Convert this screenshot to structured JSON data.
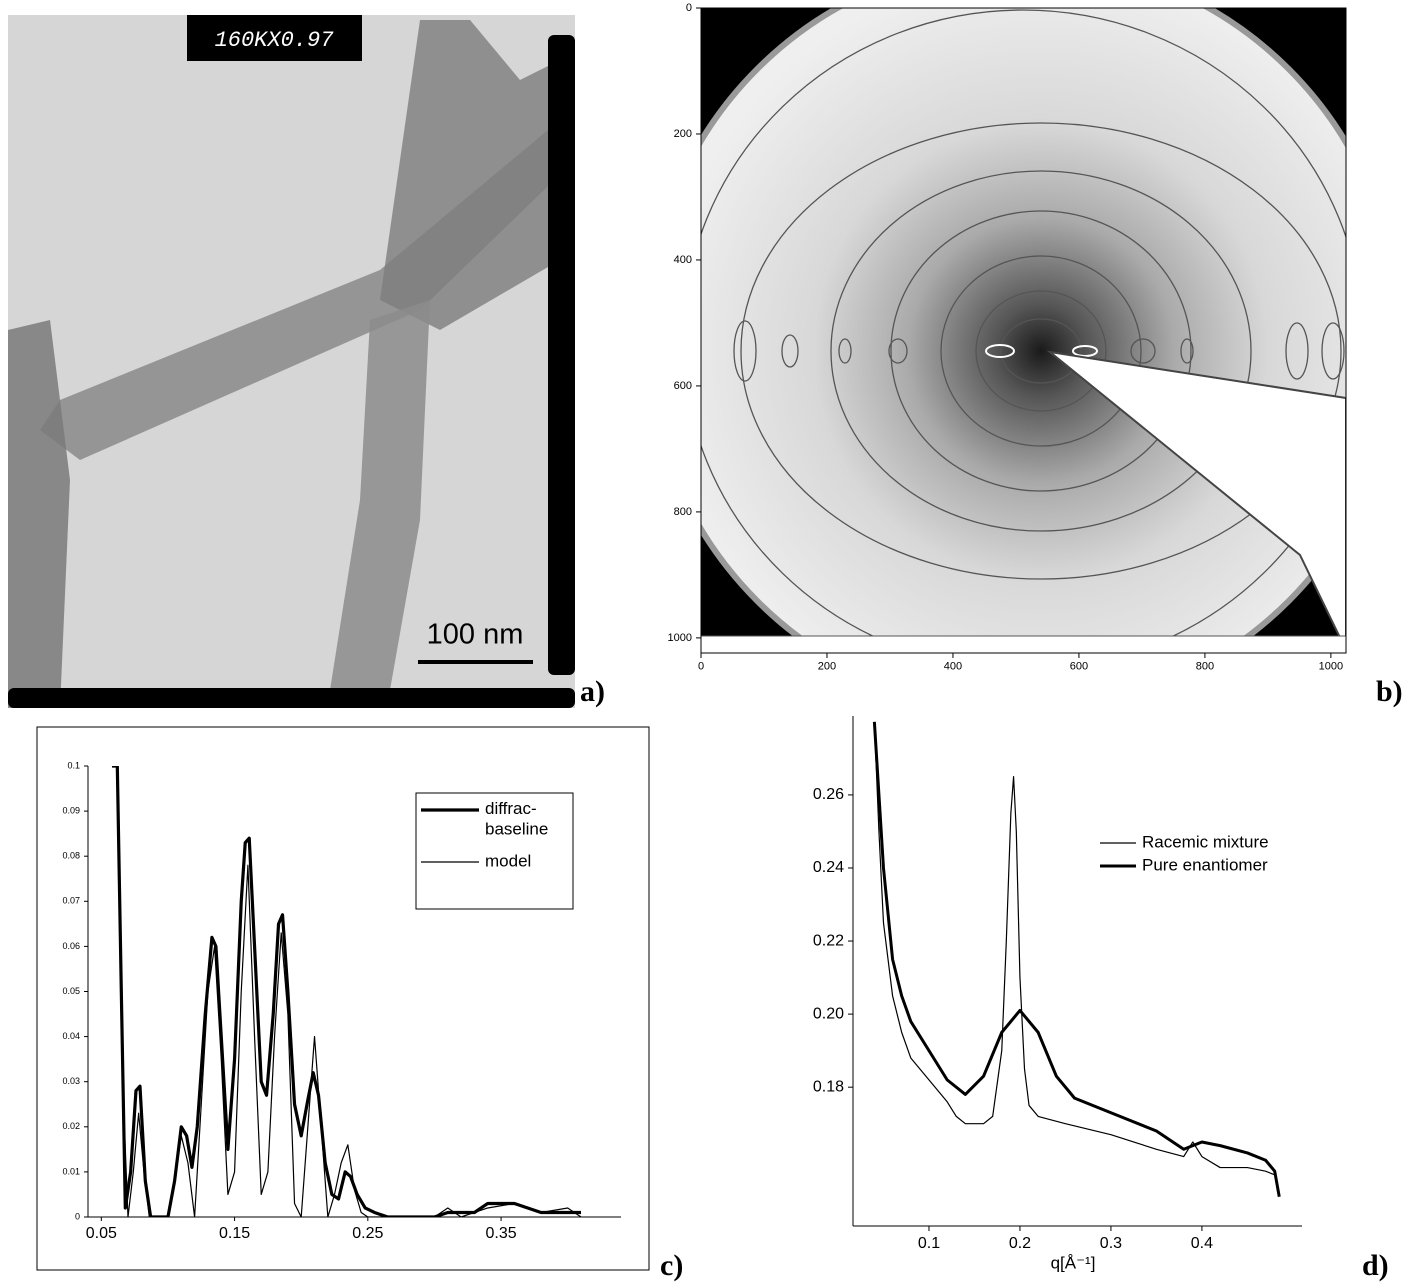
{
  "chart_data": [
    {
      "type": "image",
      "label": "a)",
      "header_text": "160KX0.97",
      "scale_bar_label": "100 nm"
    },
    {
      "type": "heatmap",
      "label": "b)",
      "colormap": "gray",
      "xlim": [
        0,
        1024
      ],
      "ylim": [
        1024,
        0
      ],
      "xticks": [
        0,
        200,
        400,
        600,
        800,
        1000
      ],
      "yticks": [
        0,
        200,
        400,
        600,
        800,
        1000
      ]
    },
    {
      "type": "line",
      "label": "c)",
      "legend": "upper right",
      "xlim": [
        0.04,
        0.44
      ],
      "ylim": [
        0,
        0.1
      ],
      "xticks": [
        0.05,
        0.15,
        0.25,
        0.35
      ],
      "yticks": [
        0,
        0.01,
        0.02,
        0.03,
        0.04,
        0.05,
        0.06,
        0.07,
        0.08,
        0.09,
        0.1
      ],
      "series": [
        {
          "name": "diffrac-\nbaseline",
          "color": "#000000",
          "line_width": 3.2,
          "x": [
            0.058,
            0.062,
            0.065,
            0.068,
            0.072,
            0.076,
            0.079,
            0.083,
            0.087,
            0.1,
            0.105,
            0.11,
            0.114,
            0.118,
            0.122,
            0.128,
            0.133,
            0.136,
            0.14,
            0.145,
            0.15,
            0.155,
            0.158,
            0.161,
            0.165,
            0.17,
            0.174,
            0.179,
            0.183,
            0.186,
            0.19,
            0.195,
            0.2,
            0.205,
            0.209,
            0.213,
            0.218,
            0.223,
            0.228,
            0.233,
            0.237,
            0.242,
            0.248,
            0.255,
            0.265,
            0.28,
            0.3,
            0.31,
            0.32,
            0.33,
            0.34,
            0.35,
            0.36,
            0.37,
            0.38,
            0.39,
            0.4,
            0.41
          ],
          "values": [
            0.1,
            0.1,
            0.05,
            0.002,
            0.01,
            0.028,
            0.029,
            0.008,
            0,
            0,
            0.008,
            0.02,
            0.018,
            0.011,
            0.02,
            0.045,
            0.062,
            0.06,
            0.04,
            0.015,
            0.035,
            0.07,
            0.083,
            0.084,
            0.06,
            0.03,
            0.027,
            0.045,
            0.065,
            0.067,
            0.05,
            0.025,
            0.018,
            0.026,
            0.032,
            0.027,
            0.012,
            0.005,
            0.004,
            0.01,
            0.009,
            0.005,
            0.002,
            0.001,
            0,
            0,
            0,
            0.001,
            0.001,
            0.001,
            0.003,
            0.003,
            0.003,
            0.002,
            0.001,
            0.001,
            0.001,
            0.001
          ]
        },
        {
          "name": "model",
          "color": "#000000",
          "line_width": 1.2,
          "x": [
            0.058,
            0.062,
            0.066,
            0.07,
            0.074,
            0.078,
            0.082,
            0.086,
            0.1,
            0.106,
            0.11,
            0.115,
            0.12,
            0.125,
            0.13,
            0.135,
            0.14,
            0.145,
            0.15,
            0.155,
            0.16,
            0.165,
            0.17,
            0.175,
            0.18,
            0.185,
            0.19,
            0.195,
            0.2,
            0.205,
            0.21,
            0.215,
            0.22,
            0.225,
            0.23,
            0.235,
            0.24,
            0.245,
            0.25,
            0.26,
            0.3,
            0.31,
            0.32,
            0.34,
            0.36,
            0.38,
            0.4,
            0.41
          ],
          "values": [
            0.1,
            0.1,
            0.03,
            0,
            0.01,
            0.023,
            0.01,
            0,
            0,
            0.01,
            0.018,
            0.012,
            0,
            0.025,
            0.05,
            0.06,
            0.035,
            0.005,
            0.01,
            0.05,
            0.078,
            0.04,
            0.005,
            0.01,
            0.04,
            0.063,
            0.045,
            0.003,
            0,
            0.02,
            0.04,
            0.02,
            0,
            0.005,
            0.012,
            0.016,
            0.006,
            0.001,
            0,
            0,
            0,
            0.002,
            0,
            0.002,
            0.003,
            0.001,
            0.002,
            0
          ]
        }
      ]
    },
    {
      "type": "line",
      "label": "d)",
      "x_label": "q[Å⁻¹]",
      "legend": "upper right",
      "xlim": [
        0.0165,
        0.51
      ],
      "ylim": [
        0.142,
        0.2816
      ],
      "xticks": [
        0.1,
        0.2,
        0.3,
        0.4
      ],
      "yticks": [
        {
          "value": 0.18,
          "label": "0.18"
        },
        {
          "value": 0.2,
          "label": "0.20"
        },
        {
          "value": 0.22,
          "label": "0.22"
        },
        {
          "value": 0.24,
          "label": "0.24"
        },
        {
          "value": 0.26,
          "label": "0.26"
        }
      ],
      "series": [
        {
          "name": "Racemic mixture",
          "color": "#000000",
          "line_width": 1.2,
          "x": [
            0.04,
            0.045,
            0.05,
            0.06,
            0.07,
            0.08,
            0.1,
            0.12,
            0.13,
            0.14,
            0.16,
            0.17,
            0.18,
            0.185,
            0.19,
            0.193,
            0.196,
            0.2,
            0.205,
            0.21,
            0.22,
            0.25,
            0.3,
            0.35,
            0.38,
            0.39,
            0.4,
            0.42,
            0.45,
            0.47,
            0.48
          ],
          "values": [
            0.28,
            0.25,
            0.225,
            0.205,
            0.195,
            0.188,
            0.182,
            0.176,
            0.172,
            0.17,
            0.17,
            0.172,
            0.19,
            0.22,
            0.255,
            0.265,
            0.25,
            0.21,
            0.185,
            0.175,
            0.172,
            0.17,
            0.167,
            0.163,
            0.161,
            0.165,
            0.161,
            0.158,
            0.158,
            0.157,
            0.156
          ]
        },
        {
          "name": "Pure enantiomer",
          "color": "#000000",
          "line_width": 3,
          "x": [
            0.04,
            0.05,
            0.06,
            0.07,
            0.08,
            0.1,
            0.12,
            0.14,
            0.16,
            0.18,
            0.2,
            0.22,
            0.24,
            0.26,
            0.3,
            0.35,
            0.38,
            0.4,
            0.42,
            0.45,
            0.47,
            0.48,
            0.485
          ],
          "values": [
            0.28,
            0.24,
            0.215,
            0.205,
            0.198,
            0.19,
            0.182,
            0.178,
            0.183,
            0.195,
            0.201,
            0.195,
            0.183,
            0.177,
            0.173,
            0.168,
            0.163,
            0.165,
            0.164,
            0.162,
            0.16,
            0.157,
            0.15
          ]
        }
      ]
    }
  ]
}
